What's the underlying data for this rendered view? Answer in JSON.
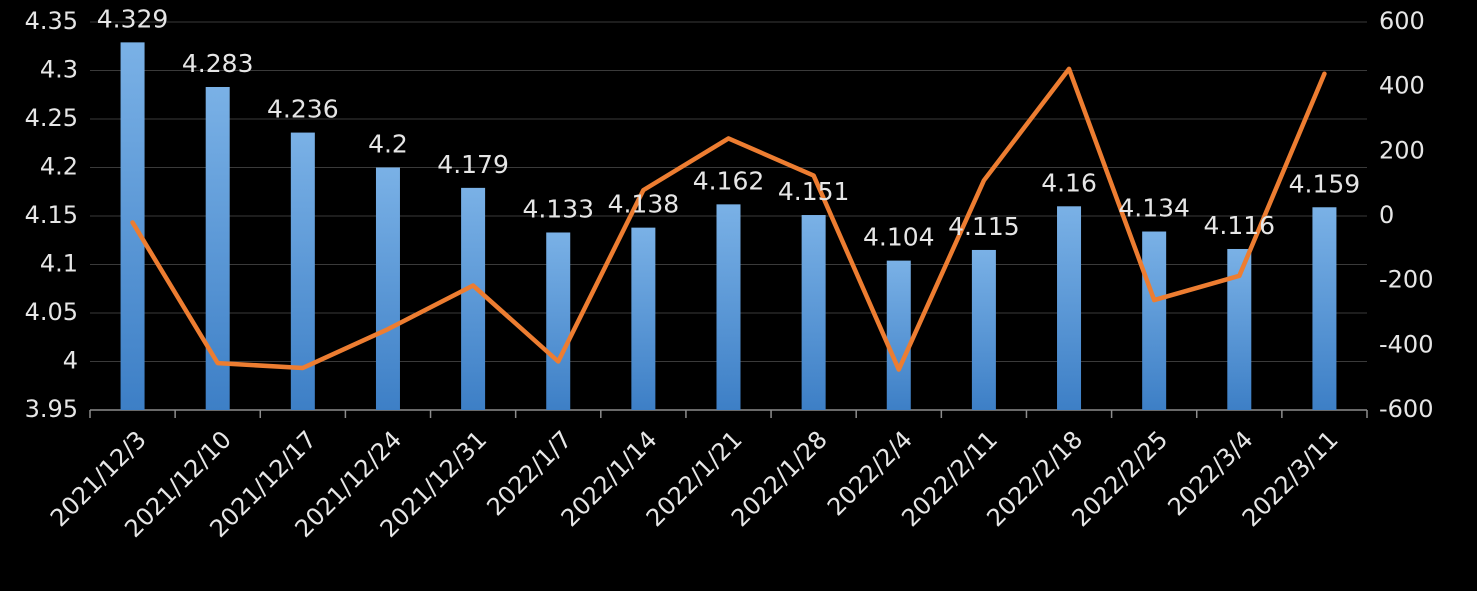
{
  "chart_data": {
    "type": "bar-line",
    "categories": [
      "2021/12/3",
      "2021/12/10",
      "2021/12/17",
      "2021/12/24",
      "2021/12/31",
      "2022/1/7",
      "2022/1/14",
      "2022/1/21",
      "2022/1/28",
      "2022/2/4",
      "2022/2/11",
      "2022/2/18",
      "2022/2/25",
      "2022/3/4",
      "2022/3/11"
    ],
    "series": [
      {
        "type": "bar",
        "color": "#5b9bd5",
        "values": [
          4.329,
          4.283,
          4.236,
          4.2,
          4.179,
          4.133,
          4.138,
          4.162,
          4.151,
          4.104,
          4.115,
          4.16,
          4.134,
          4.116,
          4.159
        ]
      },
      {
        "type": "line",
        "axis": "y2",
        "color": "#ed7d31",
        "values": [
          -20,
          -455,
          -470,
          -350,
          -215,
          -450,
          80,
          240,
          125,
          -475,
          110,
          455,
          -260,
          -185,
          440
        ]
      }
    ],
    "ylim": [
      3.95,
      4.35
    ],
    "yticks": [
      3.95,
      4,
      4.05,
      4.1,
      4.15,
      4.2,
      4.25,
      4.3,
      4.35
    ],
    "y2lim": [
      -600,
      600
    ],
    "y2ticks": [
      -600,
      -400,
      -200,
      0,
      200,
      400,
      600
    ],
    "grid": true
  }
}
